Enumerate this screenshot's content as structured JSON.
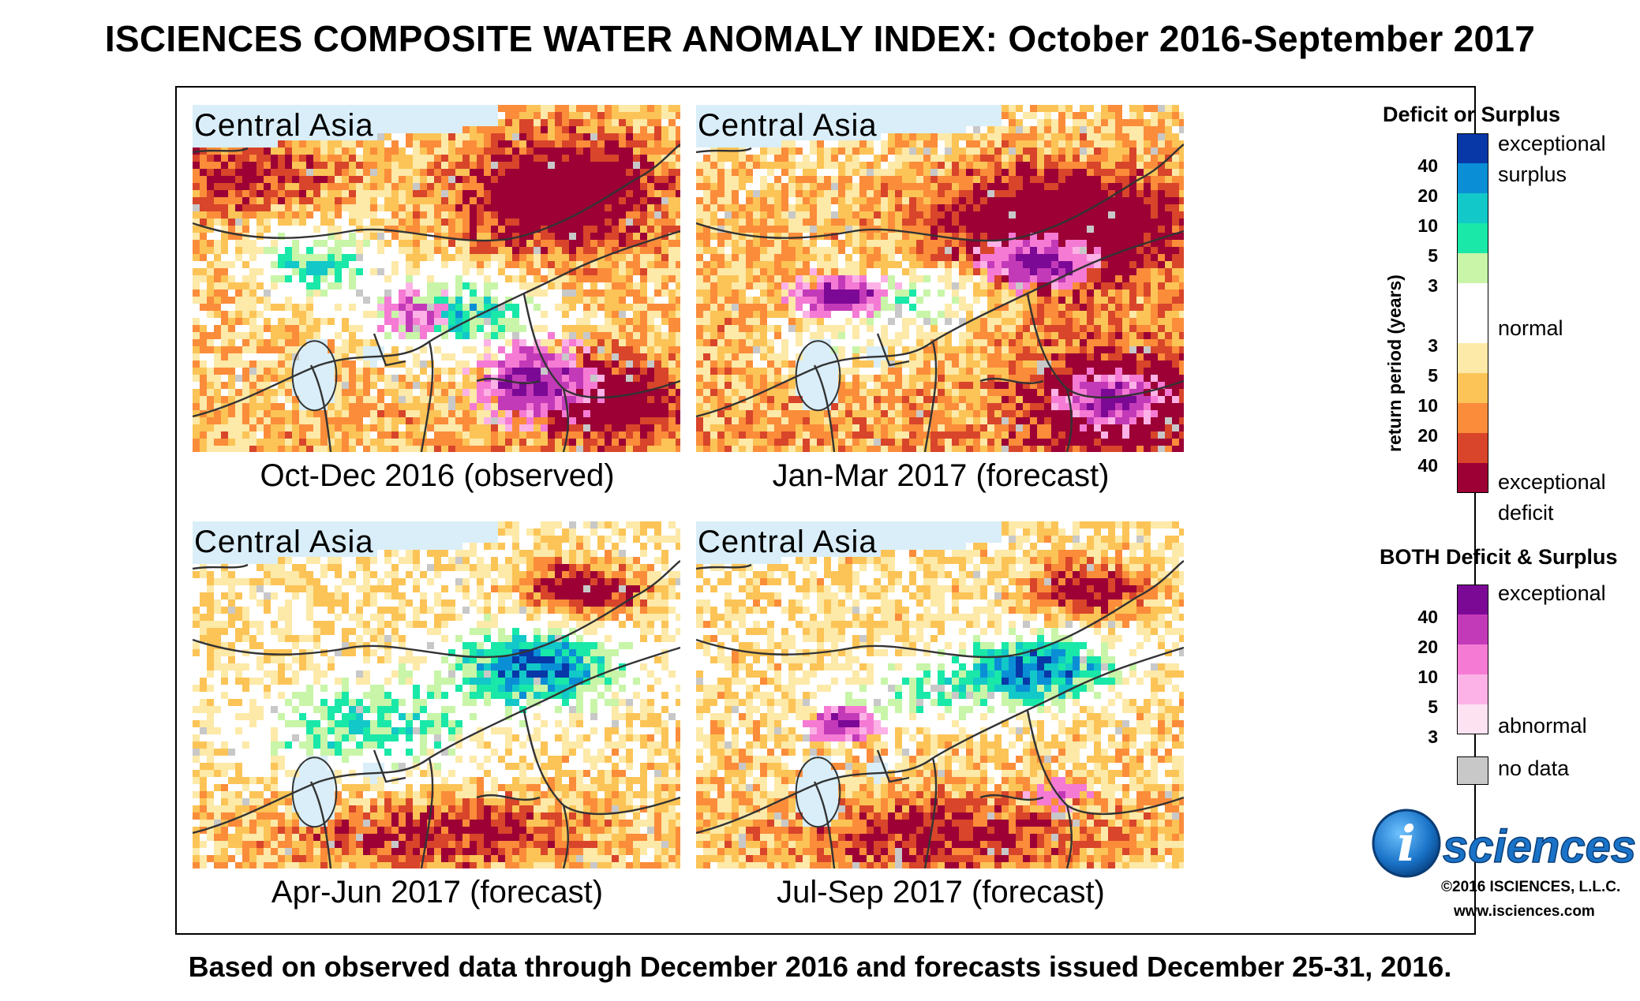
{
  "title": "ISCIENCES COMPOSITE WATER ANOMALY INDEX: October 2016-September 2017",
  "footer": "Based on observed data through December 2016 and forecasts issued December 25-31, 2016.",
  "region_label": "Central Asia",
  "panels": [
    {
      "caption": "Oct-Dec 2016 (observed)",
      "scenario": "oct-dec"
    },
    {
      "caption": "Jan-Mar 2017 (forecast)",
      "scenario": "jan-mar"
    },
    {
      "caption": "Apr-Jun 2017 (forecast)",
      "scenario": "apr-jun"
    },
    {
      "caption": "Jul-Sep 2017 (forecast)",
      "scenario": "jul-sep"
    }
  ],
  "legend": {
    "deficit_surplus_title": "Deficit or Surplus",
    "axis_label": "return period (years)",
    "surplus_label_1": "exceptional",
    "surplus_label_2": "surplus",
    "normal_label": "normal",
    "deficit_label_1": "exceptional",
    "deficit_label_2": "deficit",
    "surplus_ticks": [
      "40",
      "20",
      "10",
      "5",
      "3"
    ],
    "deficit_ticks": [
      "3",
      "5",
      "10",
      "20",
      "40"
    ],
    "colors": {
      "surplus": [
        "#0838a8",
        "#0a8fd6",
        "#12c8c8",
        "#19e8a8",
        "#c8f5a8"
      ],
      "normal": "#ffffff",
      "deficit": [
        "#fde9a8",
        "#fcc456",
        "#fb8c3a",
        "#d8452a",
        "#9c0034"
      ]
    },
    "both_title": "BOTH Deficit & Surplus",
    "both_label_top": "exceptional",
    "both_label_bottom": "abnormal",
    "both_ticks": [
      "40",
      "20",
      "10",
      "5",
      "3"
    ],
    "both_colors": [
      "#7c0896",
      "#c33ab8",
      "#f57ad4",
      "#fcb2e6",
      "#fde2f2"
    ],
    "nodata_label": "no data",
    "nodata_color": "#c8c8c8"
  },
  "logo": {
    "letter": "i",
    "text": "sciences"
  },
  "copyright": "©2016 ISCIENCES, L.L.C.",
  "website": "www.isciences.com"
}
